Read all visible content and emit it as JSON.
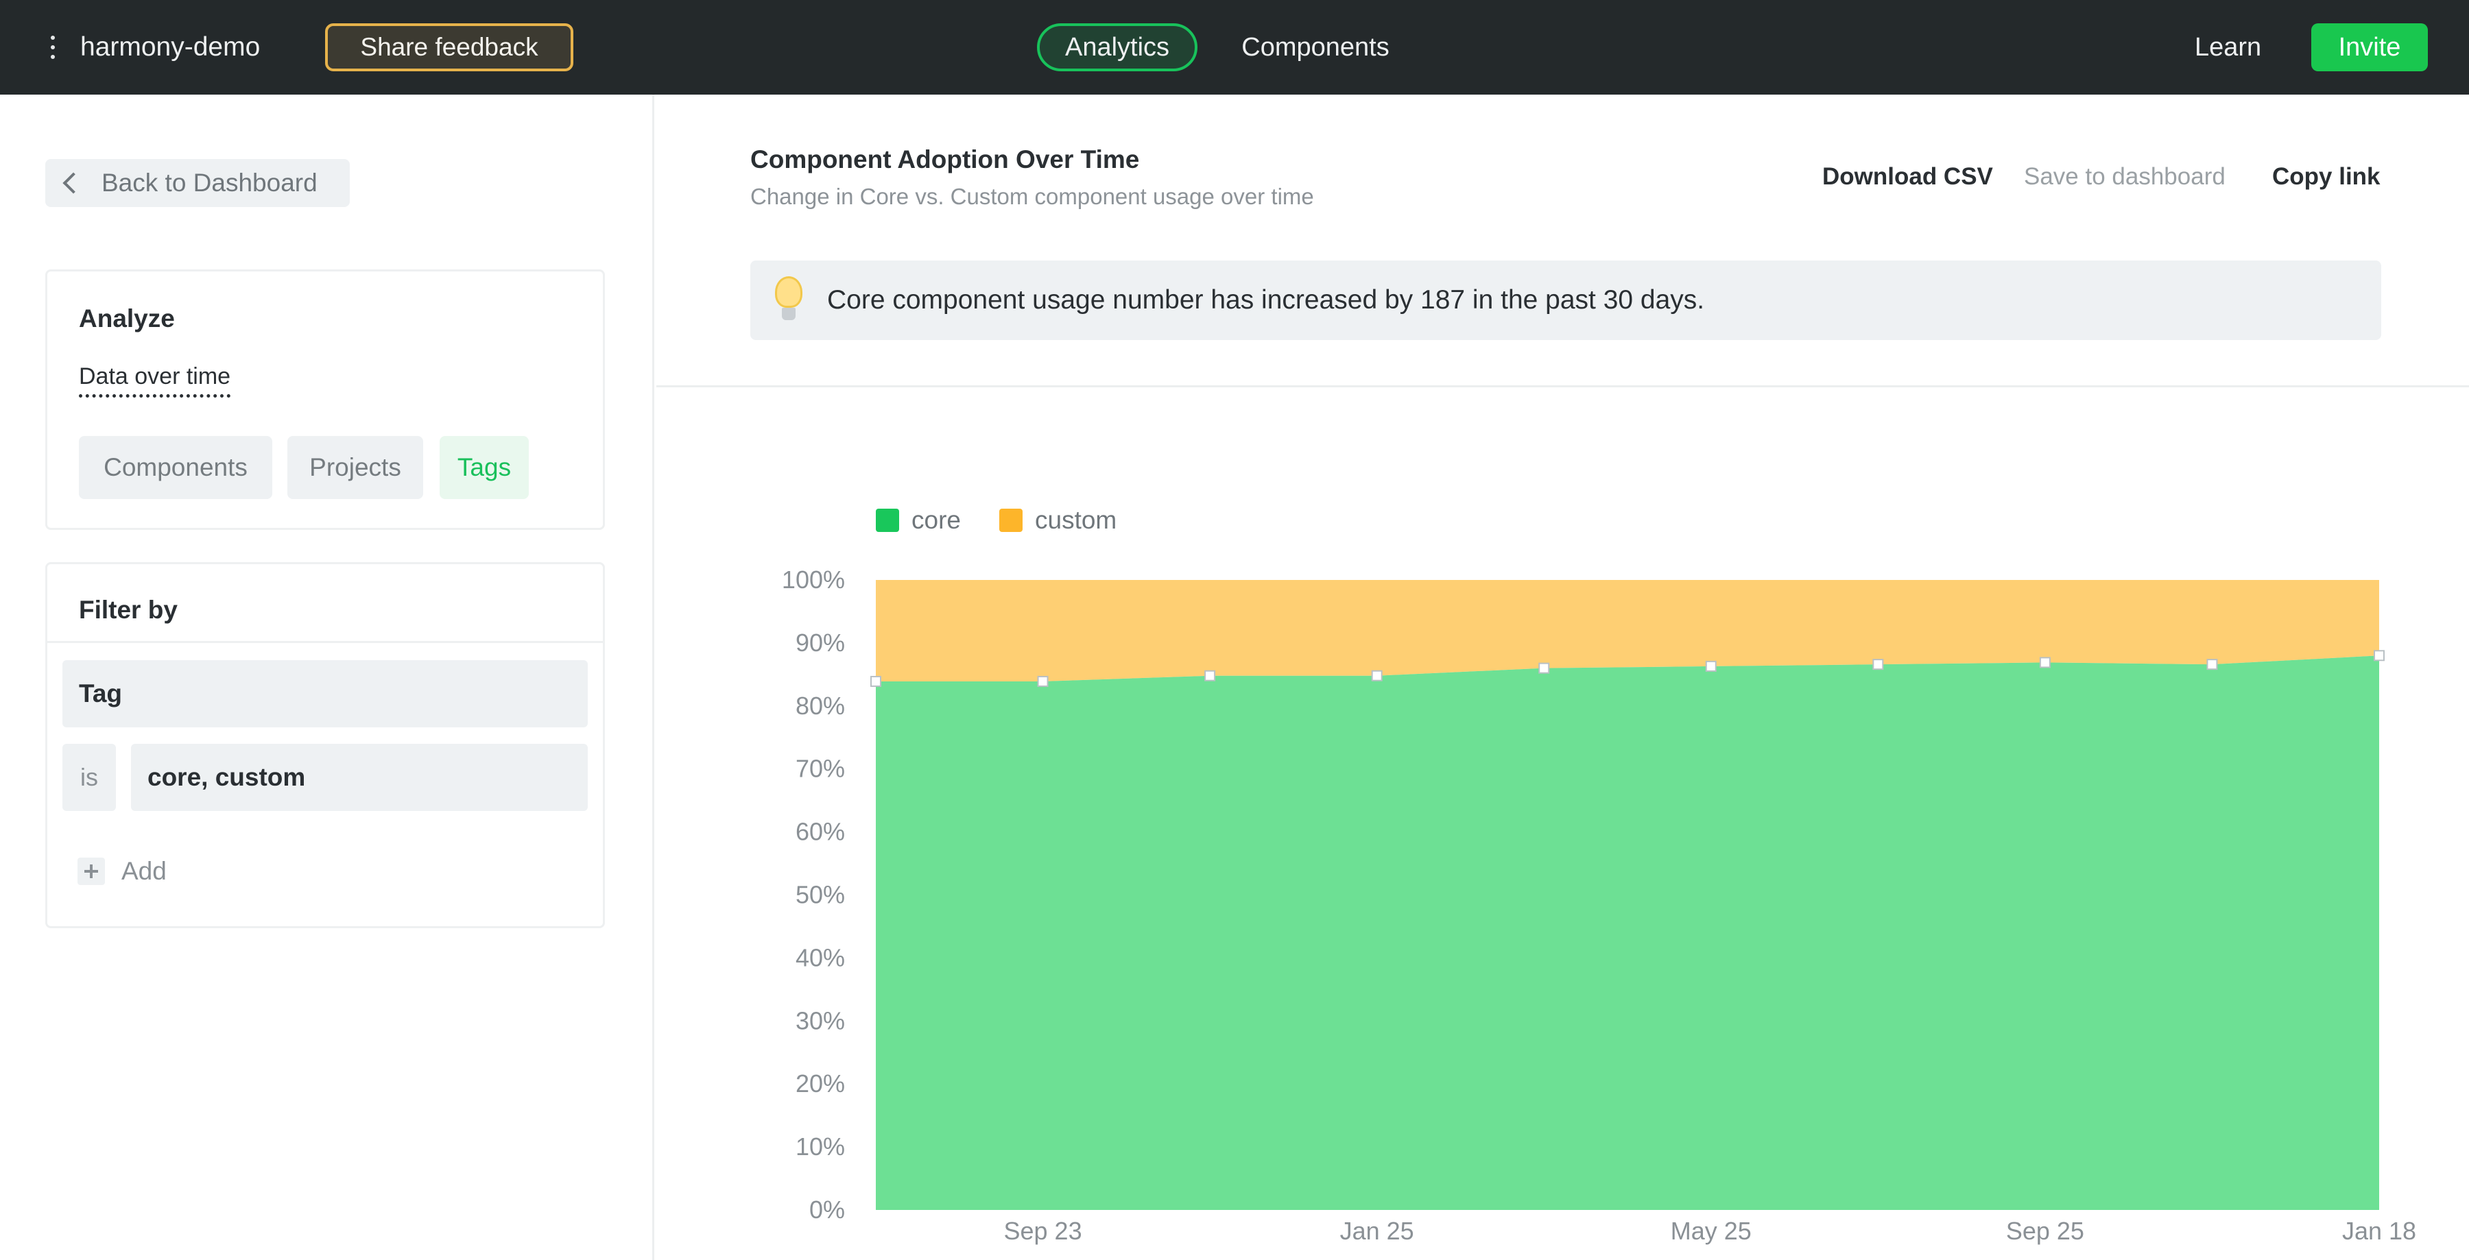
{
  "topbar": {
    "project_name": "harmony-demo",
    "feedback_label": "Share feedback",
    "tabs": [
      {
        "label": "Analytics",
        "active": true
      },
      {
        "label": "Components",
        "active": false
      }
    ],
    "learn_label": "Learn",
    "invite_label": "Invite",
    "icons": {
      "menu": "vertical-dots-icon"
    }
  },
  "sidebar": {
    "back_label": "Back to Dashboard",
    "analyze": {
      "title": "Analyze",
      "mode": "Data over time",
      "options": [
        {
          "label": "Components",
          "selected": false
        },
        {
          "label": "Projects",
          "selected": false
        },
        {
          "label": "Tags",
          "selected": true
        }
      ]
    },
    "filter": {
      "title": "Filter by",
      "field": "Tag",
      "operator": "is",
      "value": "core, custom",
      "add_label": "Add"
    }
  },
  "main": {
    "title": "Component Adoption Over Time",
    "subtitle": "Change in Core vs. Custom component usage over time",
    "actions": {
      "download": "Download CSV",
      "save": "Save to dashboard",
      "copy": "Copy link"
    },
    "insight": "Core component usage number has increased by 187 in the past 30 days."
  },
  "colors": {
    "core": "#6de094",
    "custom": "#fecf73",
    "core_swatch": "#19c75b",
    "custom_swatch": "#fdb52a",
    "accent": "#19c74f"
  },
  "chart_data": {
    "type": "area",
    "stacked": true,
    "normalized": true,
    "xlabel": "",
    "ylabel": "",
    "x_ticks": [
      "Sep 23",
      "Jan 25",
      "May 25",
      "Sep 25",
      "Jan 18"
    ],
    "y_ticks": [
      "0%",
      "10%",
      "20%",
      "30%",
      "40%",
      "50%",
      "60%",
      "70%",
      "80%",
      "90%",
      "100%"
    ],
    "ylim": [
      0,
      100
    ],
    "x": [
      "",
      "Sep 23",
      "",
      "Jan 25",
      "",
      "May 25",
      "",
      "Sep 25",
      "",
      "Jan 18"
    ],
    "series": [
      {
        "name": "core",
        "values": [
          83.9,
          83.9,
          84.8,
          84.8,
          86.0,
          86.3,
          86.6,
          86.9,
          86.6,
          88.0
        ]
      },
      {
        "name": "custom",
        "values": [
          16.1,
          16.1,
          15.2,
          15.2,
          14.0,
          13.7,
          13.4,
          13.1,
          13.4,
          12.0
        ]
      }
    ],
    "legend": "top-left",
    "grid": false
  }
}
